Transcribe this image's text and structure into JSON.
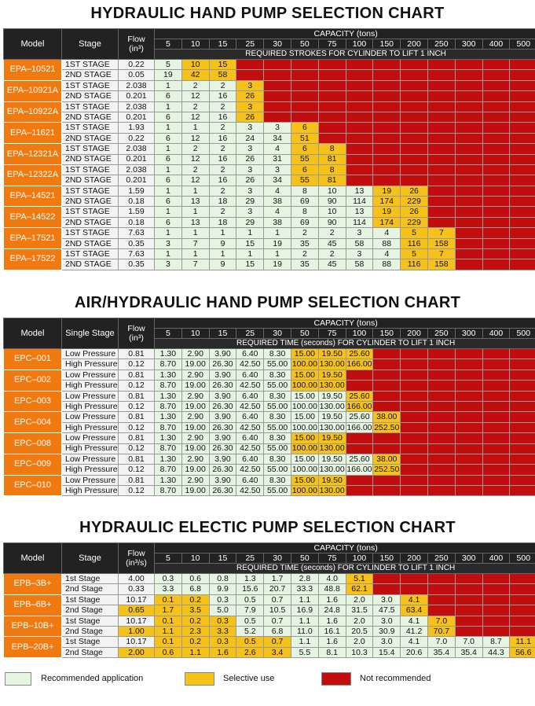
{
  "capacities": [
    "5",
    "10",
    "15",
    "25",
    "30",
    "50",
    "75",
    "100",
    "150",
    "200",
    "250",
    "300",
    "400",
    "500"
  ],
  "colors": {
    "recommended": "#e6f5e1",
    "selective": "#f6c21a",
    "not_recommended": "#c10d0d",
    "model_bg": "#f07a10",
    "header_bg": "#222222"
  },
  "legend": {
    "recommended": "Recommended application",
    "selective": "Selective use",
    "not_recommended": "Not recommended"
  },
  "charts": [
    {
      "title": "HYDRAULIC HAND PUMP SELECTION CHART",
      "col_model": "Model",
      "col_stage": "Stage",
      "col_flow": "Flow",
      "flow_unit": "(in³)",
      "capacity_label": "CAPACITY (tons)",
      "sub_label": "REQUIRED  STROKES FOR CYLINDER TO LIFT 1 INCH",
      "models": [
        {
          "name": "EPA–10521",
          "rows": [
            {
              "stage": "1ST STAGE",
              "flow": "0.22",
              "values": [
                "5",
                "10",
                "15"
              ],
              "yellow_from": 1
            },
            {
              "stage": "2ND STAGE",
              "flow": "0.05",
              "values": [
                "19",
                "42",
                "58"
              ],
              "yellow_from": 1
            }
          ]
        },
        {
          "name": "EPA–10921A",
          "rows": [
            {
              "stage": "1ST STAGE",
              "flow": "2.038",
              "values": [
                "1",
                "2",
                "2",
                "3"
              ],
              "yellow_from": 3
            },
            {
              "stage": "2ND STAGE",
              "flow": "0.201",
              "values": [
                "6",
                "12",
                "16",
                "26"
              ],
              "yellow_from": 3
            }
          ]
        },
        {
          "name": "EPA–10922A",
          "rows": [
            {
              "stage": "1ST STAGE",
              "flow": "2.038",
              "values": [
                "1",
                "2",
                "2",
                "3"
              ],
              "yellow_from": 3
            },
            {
              "stage": "2ND STAGE",
              "flow": "0.201",
              "values": [
                "6",
                "12",
                "16",
                "26"
              ],
              "yellow_from": 3
            }
          ]
        },
        {
          "name": "EPA–11621",
          "rows": [
            {
              "stage": "1ST STAGE",
              "flow": "1.93",
              "values": [
                "1",
                "1",
                "2",
                "3",
                "3",
                "6"
              ],
              "yellow_from": 5
            },
            {
              "stage": "2ND STAGE",
              "flow": "0.22",
              "values": [
                "6",
                "12",
                "16",
                "24",
                "34",
                "51"
              ],
              "yellow_from": 5
            }
          ]
        },
        {
          "name": "EPA–12321A",
          "rows": [
            {
              "stage": "1ST STAGE",
              "flow": "2.038",
              "values": [
                "1",
                "2",
                "2",
                "3",
                "4",
                "6",
                "8"
              ],
              "yellow_from": 5
            },
            {
              "stage": "2ND STAGE",
              "flow": "0.201",
              "values": [
                "6",
                "12",
                "16",
                "26",
                "31",
                "55",
                "81"
              ],
              "yellow_from": 5
            }
          ]
        },
        {
          "name": "EPA–12322A",
          "rows": [
            {
              "stage": "1ST STAGE",
              "flow": "2.038",
              "values": [
                "1",
                "2",
                "2",
                "3",
                "3",
                "6",
                "8"
              ],
              "yellow_from": 5
            },
            {
              "stage": "2ND STAGE",
              "flow": "0.201",
              "values": [
                "6",
                "12",
                "16",
                "26",
                "34",
                "55",
                "81"
              ],
              "yellow_from": 5
            }
          ]
        },
        {
          "name": "EPA–14521",
          "rows": [
            {
              "stage": "1ST STAGE",
              "flow": "1.59",
              "values": [
                "1",
                "1",
                "2",
                "3",
                "4",
                "8",
                "10",
                "13",
                "19",
                "26"
              ],
              "yellow_from": 8
            },
            {
              "stage": "2ND STAGE",
              "flow": "0.18",
              "values": [
                "6",
                "13",
                "18",
                "29",
                "38",
                "69",
                "90",
                "114",
                "174",
                "229"
              ],
              "yellow_from": 8
            }
          ]
        },
        {
          "name": "EPA–14522",
          "rows": [
            {
              "stage": "1ST STAGE",
              "flow": "1.59",
              "values": [
                "1",
                "1",
                "2",
                "3",
                "4",
                "8",
                "10",
                "13",
                "19",
                "26"
              ],
              "yellow_from": 8
            },
            {
              "stage": "2ND STAGE",
              "flow": "0.18",
              "values": [
                "6",
                "13",
                "18",
                "29",
                "38",
                "69",
                "90",
                "114",
                "174",
                "229"
              ],
              "yellow_from": 8
            }
          ]
        },
        {
          "name": "EPA–17521",
          "rows": [
            {
              "stage": "1ST STAGE",
              "flow": "7.63",
              "values": [
                "1",
                "1",
                "1",
                "1",
                "1",
                "2",
                "2",
                "3",
                "4",
                "5",
                "7"
              ],
              "yellow_from": 9
            },
            {
              "stage": "2ND STAGE",
              "flow": "0.35",
              "values": [
                "3",
                "7",
                "9",
                "15",
                "19",
                "35",
                "45",
                "58",
                "88",
                "116",
                "158"
              ],
              "yellow_from": 9
            }
          ]
        },
        {
          "name": "EPA–17522",
          "rows": [
            {
              "stage": "1ST STAGE",
              "flow": "7.63",
              "values": [
                "1",
                "1",
                "1",
                "1",
                "1",
                "2",
                "2",
                "3",
                "4",
                "5",
                "7"
              ],
              "yellow_from": 9
            },
            {
              "stage": "2ND STAGE",
              "flow": "0.35",
              "values": [
                "3",
                "7",
                "9",
                "15",
                "19",
                "35",
                "45",
                "58",
                "88",
                "116",
                "158"
              ],
              "yellow_from": 9
            }
          ]
        }
      ]
    },
    {
      "title": "AIR/HYDRAULIC HAND PUMP SELECTION CHART",
      "col_model": "Model",
      "col_stage": "Single Stage",
      "col_flow": "Flow",
      "flow_unit": "(in³)",
      "capacity_label": "CAPACITY (tons)",
      "sub_label": "REQUIRED TIME (seconds) FOR CYLINDER TO LIFT 1 INCH",
      "models": [
        {
          "name": "EPC–001",
          "rows": [
            {
              "stage": "Low Pressure",
              "flow": "0.81",
              "values": [
                "1.30",
                "2.90",
                "3.90",
                "6.40",
                "8.30",
                "15.00",
                "19.50",
                "25.60"
              ],
              "yellow_from": 5
            },
            {
              "stage": "High Pressure",
              "flow": "0.12",
              "values": [
                "8.70",
                "19.00",
                "26.30",
                "42.50",
                "55.00",
                "100.00",
                "130.00",
                "166.00"
              ],
              "yellow_from": 5
            }
          ]
        },
        {
          "name": "EPC–002",
          "rows": [
            {
              "stage": "Low Pressure",
              "flow": "0.81",
              "values": [
                "1.30",
                "2.90",
                "3.90",
                "6.40",
                "8.30",
                "15.00",
                "19.50"
              ],
              "yellow_from": 5
            },
            {
              "stage": "High Pressure",
              "flow": "0.12",
              "values": [
                "8.70",
                "19.00",
                "26.30",
                "42.50",
                "55.00",
                "100.00",
                "130.00"
              ],
              "yellow_from": 5
            }
          ]
        },
        {
          "name": "EPC–003",
          "rows": [
            {
              "stage": "Low Pressure",
              "flow": "0.81",
              "values": [
                "1.30",
                "2.90",
                "3.90",
                "6.40",
                "8.30",
                "15.00",
                "19.50",
                "25.60"
              ],
              "yellow_from": 7
            },
            {
              "stage": "High Pressure",
              "flow": "0.12",
              "values": [
                "8.70",
                "19.00",
                "26.30",
                "42.50",
                "55.00",
                "100.00",
                "130.00",
                "166.00"
              ],
              "yellow_from": 7
            }
          ]
        },
        {
          "name": "EPC–004",
          "rows": [
            {
              "stage": "Low Pressure",
              "flow": "0.81",
              "values": [
                "1.30",
                "2.90",
                "3.90",
                "6.40",
                "8.30",
                "15.00",
                "19.50",
                "25.60",
                "38.00"
              ],
              "yellow_from": 8
            },
            {
              "stage": "High Pressure",
              "flow": "0.12",
              "values": [
                "8.70",
                "19.00",
                "26.30",
                "42.50",
                "55.00",
                "100.00",
                "130.00",
                "166.00",
                "252.50"
              ],
              "yellow_from": 8
            }
          ]
        },
        {
          "name": "EPC–008",
          "rows": [
            {
              "stage": "Low Pressure",
              "flow": "0.81",
              "values": [
                "1.30",
                "2.90",
                "3.90",
                "6.40",
                "8.30",
                "15.00",
                "19.50"
              ],
              "yellow_from": 5
            },
            {
              "stage": "High Pressure",
              "flow": "0.12",
              "values": [
                "8.70",
                "19.00",
                "26.30",
                "42.50",
                "55.00",
                "100.00",
                "130.00"
              ],
              "yellow_from": 5
            }
          ]
        },
        {
          "name": "EPC–009",
          "rows": [
            {
              "stage": "Low Pressure",
              "flow": "0.81",
              "values": [
                "1.30",
                "2.90",
                "3.90",
                "6.40",
                "8.30",
                "15.00",
                "19.50",
                "25.60",
                "38.00"
              ],
              "yellow_from": 8
            },
            {
              "stage": "High Pressure",
              "flow": "0.12",
              "values": [
                "8.70",
                "19.00",
                "26.30",
                "42.50",
                "55.00",
                "100.00",
                "130.00",
                "166.00",
                "252.50"
              ],
              "yellow_from": 8
            }
          ]
        },
        {
          "name": "EPC–010",
          "rows": [
            {
              "stage": "Low Pressure",
              "flow": "0.81",
              "values": [
                "1.30",
                "2.90",
                "3.90",
                "6.40",
                "8.30",
                "15.00",
                "19.50"
              ],
              "yellow_from": 5
            },
            {
              "stage": "High Pressure",
              "flow": "0.12",
              "values": [
                "8.70",
                "19.00",
                "26.30",
                "42.50",
                "55.00",
                "100.00",
                "130.00"
              ],
              "yellow_from": 5
            }
          ]
        }
      ]
    },
    {
      "title": "HYDRAULIC ELECTIC PUMP SELECTION CHART",
      "col_model": "Model",
      "col_stage": "Stage",
      "col_flow": "Flow",
      "flow_unit": "(in³/s)",
      "capacity_label": "CAPACITY (tons)",
      "sub_label": "REQUIRED TIME (seconds) FOR CYLINDER TO LIFT 1 INCH",
      "models": [
        {
          "name": "EPB–3B+",
          "rows": [
            {
              "stage": "1st Stage",
              "flow": "4.00",
              "values": [
                "0.3",
                "0.6",
                "0.8",
                "1.3",
                "1.7",
                "2.8",
                "4.0",
                "5.1"
              ],
              "yellow_from": 7
            },
            {
              "stage": "2nd Stage",
              "flow": "0.33",
              "values": [
                "3.3",
                "6.8",
                "9.9",
                "15.6",
                "20.7",
                "33.3",
                "48.8",
                "62.1"
              ],
              "yellow_from": 7
            }
          ]
        },
        {
          "name": "EPB–6B+",
          "rows": [
            {
              "stage": "1st Stage",
              "flow": "10.17",
              "values": [
                "0.1",
                "0.2",
                "0.3",
                "0.5",
                "0.7",
                "1.1",
                "1.6",
                "2.0",
                "3.0",
                "4.1"
              ],
              "yellow_from": 9,
              "yellow_cells": [
                0,
                1
              ]
            },
            {
              "stage": "2nd Stage",
              "flow": "0.65",
              "values": [
                "1.7",
                "3.5",
                "5.0",
                "7.9",
                "10.5",
                "16.9",
                "24.8",
                "31.5",
                "47.5",
                "63.4"
              ],
              "yellow_from": 9,
              "yellow_cells": [
                0,
                1
              ],
              "yellow_flow": true
            }
          ]
        },
        {
          "name": "EPB–10B+",
          "rows": [
            {
              "stage": "1st Stage",
              "flow": "10.17",
              "values": [
                "0.1",
                "0.2",
                "0.3",
                "0.5",
                "0.7",
                "1.1",
                "1.6",
                "2.0",
                "3.0",
                "4.1",
                "7.0"
              ],
              "yellow_from": 10,
              "yellow_cells": [
                0,
                1,
                2
              ]
            },
            {
              "stage": "2nd Stage",
              "flow": "1.00",
              "values": [
                "1.1",
                "2.3",
                "3.3",
                "5.2",
                "6.8",
                "11.0",
                "16.1",
                "20.5",
                "30.9",
                "41.2",
                "70.7"
              ],
              "yellow_from": 10,
              "yellow_cells": [
                0,
                1,
                2
              ],
              "yellow_flow": true
            }
          ]
        },
        {
          "name": "EPB–20B+",
          "rows": [
            {
              "stage": "1st Stage",
              "flow": "10.17",
              "values": [
                "0.1",
                "0.2",
                "0.3",
                "0.5",
                "0.7",
                "1.1",
                "1.6",
                "2.0",
                "3.0",
                "4.1",
                "7.0",
                "7.0",
                "8.7",
                "11.1"
              ],
              "yellow_from": 13,
              "yellow_cells": [
                0,
                1,
                2,
                3,
                4
              ]
            },
            {
              "stage": "2nd Stage",
              "flow": "2.00",
              "values": [
                "0.6",
                "1.1",
                "1.6",
                "2.6",
                "3.4",
                "5.5",
                "8.1",
                "10.3",
                "15.4",
                "20.6",
                "35.4",
                "35.4",
                "44.3",
                "56.6"
              ],
              "yellow_from": 13,
              "yellow_cells": [
                0,
                1,
                2,
                3,
                4
              ],
              "yellow_flow": true
            }
          ]
        }
      ]
    }
  ]
}
